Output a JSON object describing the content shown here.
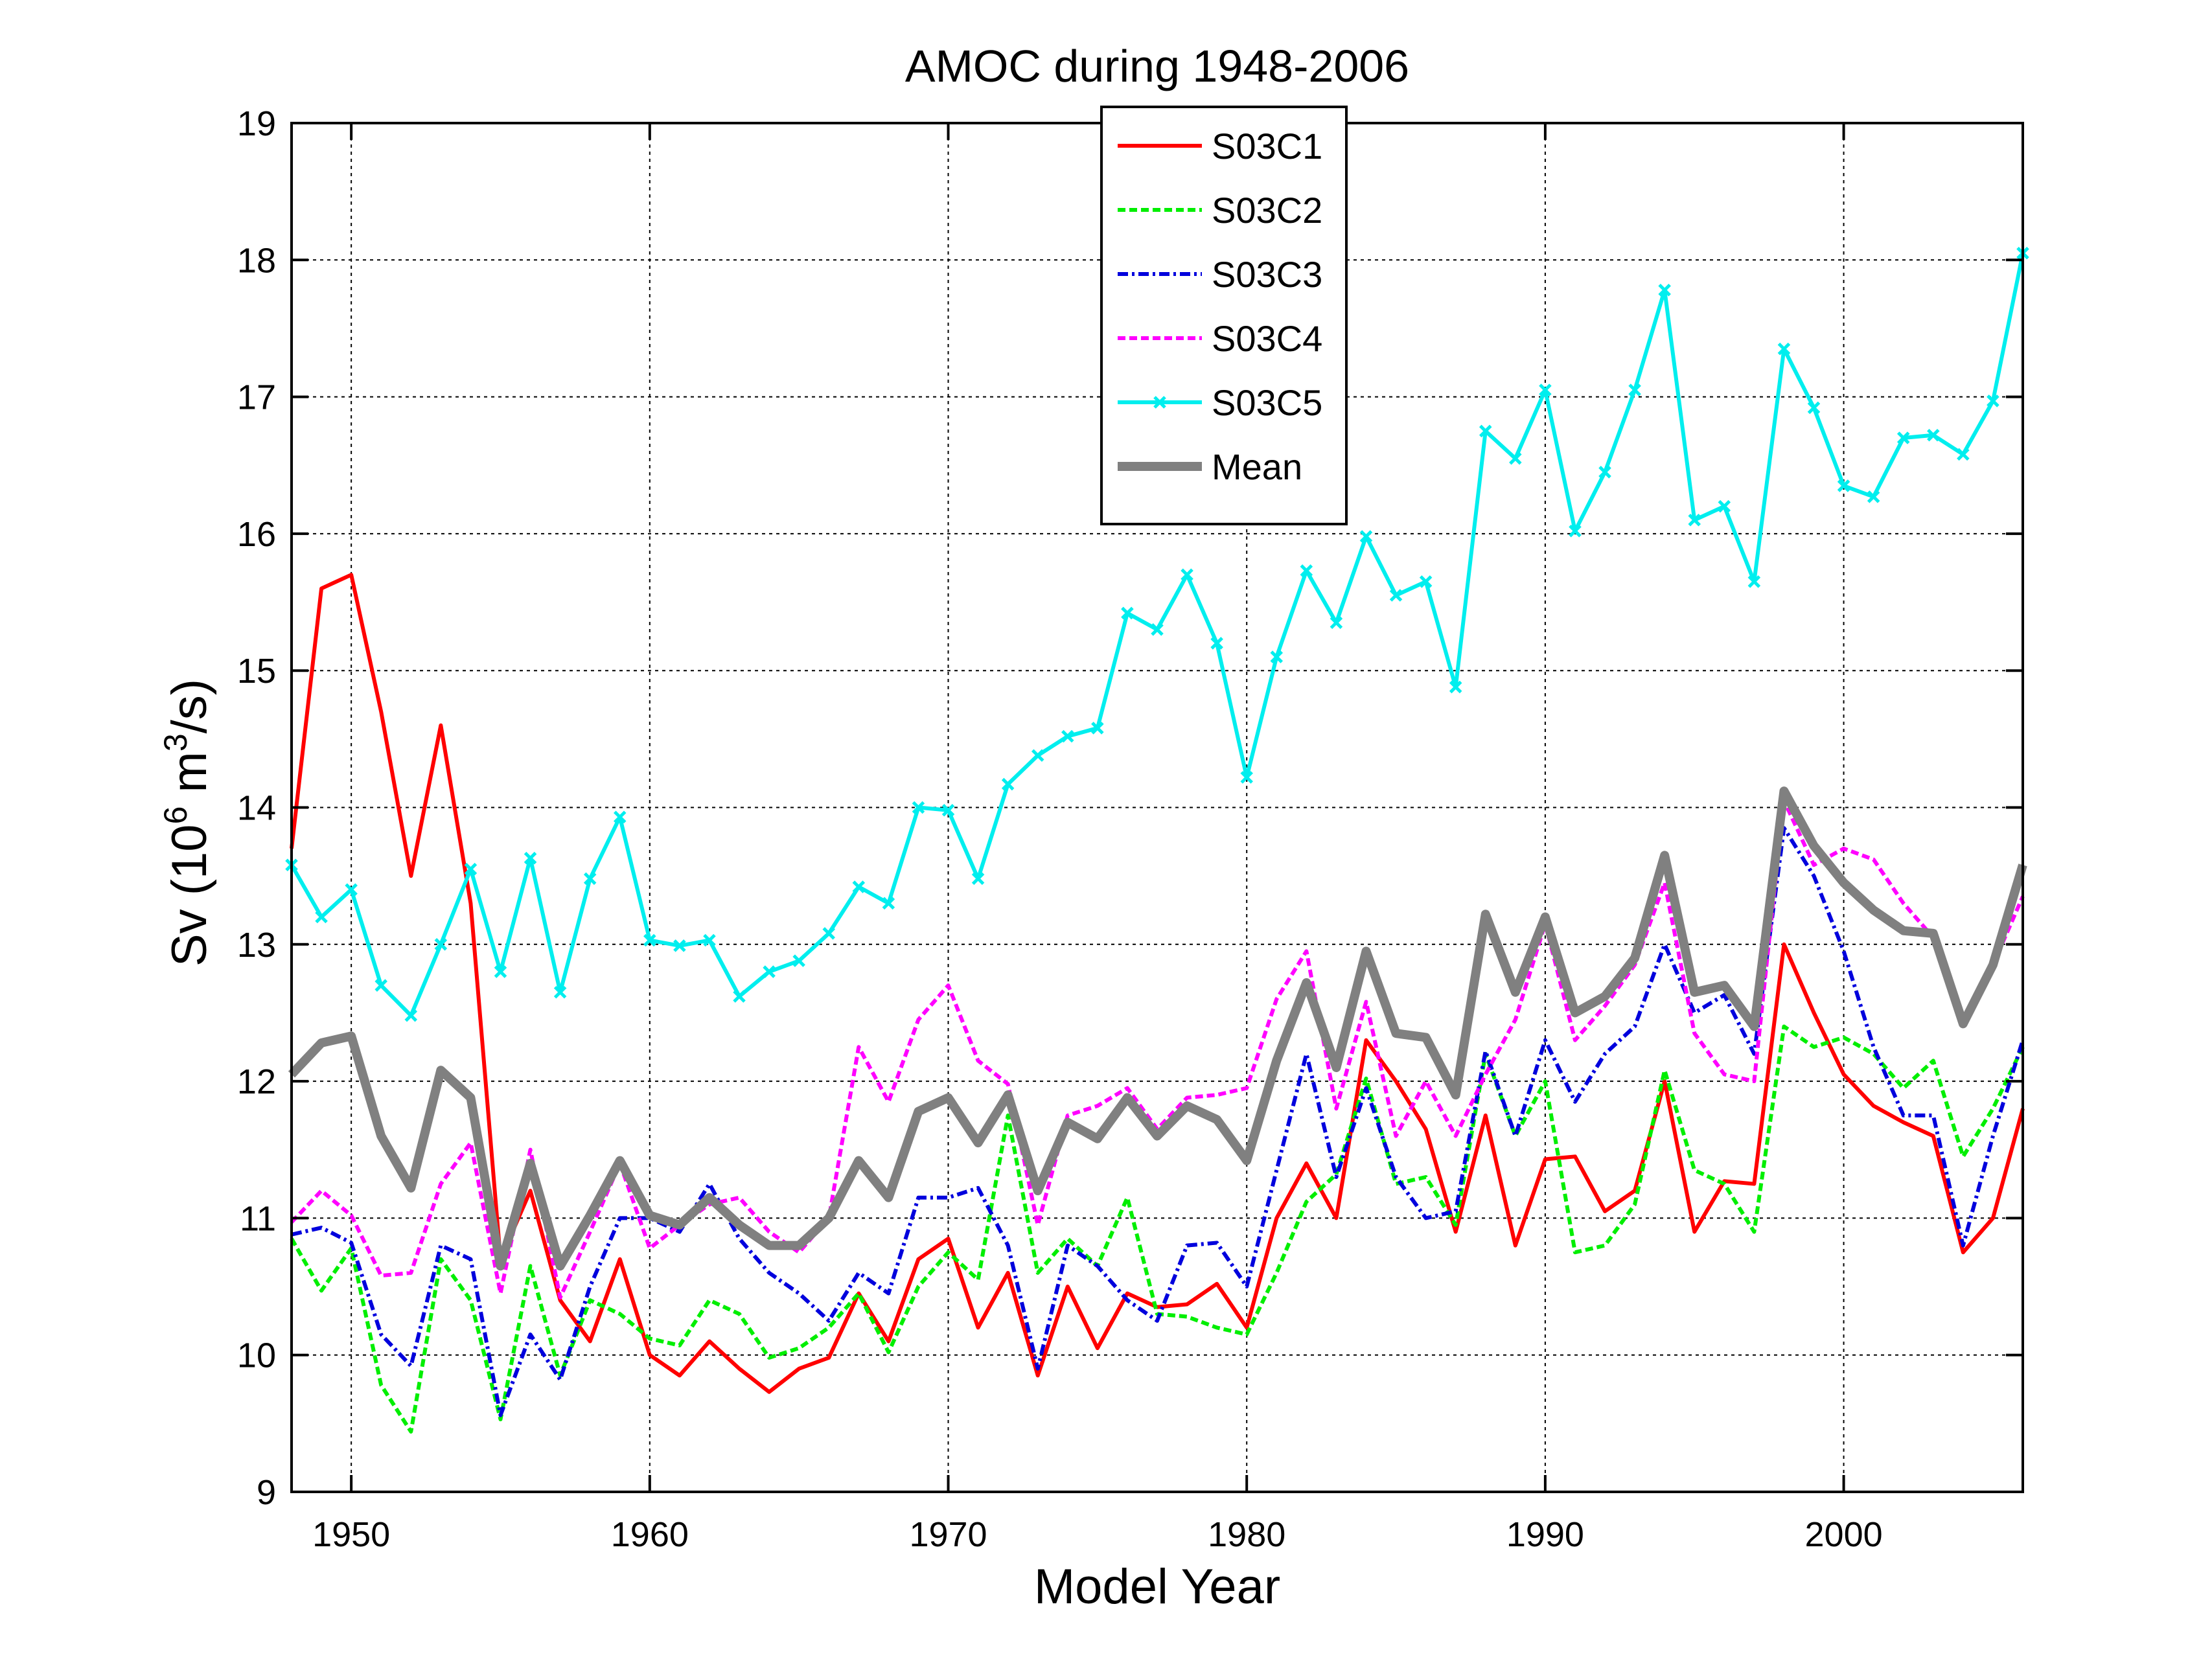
{
  "chart_data": {
    "type": "line",
    "title": "AMOC during 1948-2006",
    "xlabel": "Model Year",
    "ylabel_prefix": "Sv (10",
    "ylabel_sup1": "6",
    "ylabel_mid": " m",
    "ylabel_sup2": "3",
    "ylabel_suffix": "/s)",
    "xlim": [
      1948,
      2006
    ],
    "ylim": [
      9,
      19
    ],
    "xticks": [
      1950,
      1960,
      1970,
      1980,
      1990,
      2000
    ],
    "yticks": [
      9,
      10,
      11,
      12,
      13,
      14,
      15,
      16,
      17,
      18,
      19
    ],
    "grid": true,
    "legend_position": "top-center",
    "x": [
      1948,
      1949,
      1950,
      1951,
      1952,
      1953,
      1954,
      1955,
      1956,
      1957,
      1958,
      1959,
      1960,
      1961,
      1962,
      1963,
      1964,
      1965,
      1966,
      1967,
      1968,
      1969,
      1970,
      1971,
      1972,
      1973,
      1974,
      1975,
      1976,
      1977,
      1978,
      1979,
      1980,
      1981,
      1982,
      1983,
      1984,
      1985,
      1986,
      1987,
      1988,
      1989,
      1990,
      1991,
      1992,
      1993,
      1994,
      1995,
      1996,
      1997,
      1998,
      1999,
      2000,
      2001,
      2002,
      2003,
      2004,
      2005,
      2006
    ],
    "series": [
      {
        "name": "S03C1",
        "color": "#ff0000",
        "dash": "solid",
        "marker": "none",
        "width": "thin",
        "values": [
          13.7,
          15.6,
          15.7,
          14.7,
          13.5,
          14.6,
          13.3,
          10.7,
          11.2,
          10.4,
          10.1,
          10.7,
          10.0,
          9.85,
          10.1,
          9.9,
          9.73,
          9.9,
          9.98,
          10.45,
          10.1,
          10.7,
          10.85,
          10.2,
          10.6,
          9.85,
          10.5,
          10.05,
          10.45,
          10.35,
          10.37,
          10.52,
          10.2,
          11.0,
          11.4,
          11.0,
          12.3,
          12.0,
          11.65,
          10.9,
          11.75,
          10.8,
          11.43,
          11.45,
          11.05,
          11.2,
          12.0,
          10.9,
          11.27,
          11.25,
          13.0,
          12.5,
          12.05,
          11.82,
          11.7,
          11.6,
          10.75,
          11.0,
          11.8
        ]
      },
      {
        "name": "S03C2",
        "color": "#00ee00",
        "dash": "dashed",
        "marker": "none",
        "width": "thin",
        "values": [
          10.85,
          10.47,
          10.78,
          9.78,
          9.44,
          10.7,
          10.4,
          9.53,
          10.65,
          9.85,
          10.4,
          10.3,
          10.12,
          10.07,
          10.4,
          10.3,
          9.98,
          10.05,
          10.2,
          10.45,
          10.02,
          10.5,
          10.75,
          10.55,
          11.75,
          10.6,
          10.85,
          10.65,
          11.15,
          10.3,
          10.28,
          10.2,
          10.15,
          10.6,
          11.12,
          11.32,
          12.02,
          11.25,
          11.3,
          10.95,
          12.2,
          11.6,
          12.0,
          10.75,
          10.8,
          11.1,
          12.08,
          11.35,
          11.25,
          10.9,
          12.4,
          12.25,
          12.32,
          12.2,
          11.95,
          12.15,
          11.45,
          11.8,
          12.25
        ]
      },
      {
        "name": "S03C3",
        "color": "#0000dd",
        "dash": "dashdot",
        "marker": "none",
        "width": "thin",
        "values": [
          10.88,
          10.93,
          10.82,
          10.15,
          9.92,
          10.8,
          10.7,
          9.56,
          10.15,
          9.82,
          10.5,
          11.0,
          11.0,
          10.9,
          11.25,
          10.85,
          10.6,
          10.45,
          10.25,
          10.6,
          10.45,
          11.15,
          11.15,
          11.22,
          10.8,
          9.9,
          10.8,
          10.65,
          10.4,
          10.25,
          10.8,
          10.82,
          10.5,
          11.35,
          12.2,
          11.3,
          11.95,
          11.3,
          11.0,
          11.05,
          12.22,
          11.6,
          12.3,
          11.85,
          12.2,
          12.4,
          13.0,
          12.5,
          12.63,
          12.2,
          13.85,
          13.5,
          12.95,
          12.25,
          11.75,
          11.75,
          10.8,
          11.6,
          12.3
        ]
      },
      {
        "name": "S03C4",
        "color": "#ff00ff",
        "dash": "dashed",
        "marker": "none",
        "width": "thin",
        "values": [
          10.97,
          11.2,
          11.02,
          10.58,
          10.6,
          11.25,
          11.55,
          10.45,
          11.5,
          10.42,
          10.9,
          11.4,
          10.78,
          10.95,
          11.1,
          11.15,
          10.9,
          10.75,
          11.0,
          12.25,
          11.85,
          12.45,
          12.7,
          12.15,
          11.98,
          10.95,
          11.75,
          11.82,
          11.95,
          11.65,
          11.88,
          11.9,
          11.95,
          12.6,
          12.95,
          11.8,
          12.58,
          11.6,
          12.0,
          11.6,
          12.05,
          12.45,
          13.15,
          12.3,
          12.55,
          12.85,
          13.45,
          12.35,
          12.05,
          12.0,
          14.05,
          13.58,
          13.7,
          13.62,
          13.3,
          13.05,
          12.42,
          12.85,
          13.35
        ]
      },
      {
        "name": "S03C5",
        "color": "#00eeee",
        "dash": "solid",
        "marker": "x",
        "width": "thin",
        "values": [
          13.58,
          13.2,
          13.4,
          12.7,
          12.48,
          13.0,
          13.55,
          12.8,
          13.63,
          12.65,
          13.48,
          13.93,
          13.03,
          12.99,
          13.03,
          12.62,
          12.8,
          12.88,
          13.08,
          13.42,
          13.3,
          14.0,
          13.98,
          13.48,
          14.17,
          14.38,
          14.52,
          14.58,
          15.42,
          15.3,
          15.7,
          15.2,
          14.22,
          15.1,
          15.73,
          15.35,
          15.98,
          15.55,
          15.65,
          14.88,
          16.75,
          16.55,
          17.05,
          16.02,
          16.45,
          17.05,
          17.78,
          16.1,
          16.2,
          15.65,
          17.35,
          16.92,
          16.35,
          16.27,
          16.7,
          16.72,
          16.58,
          16.97,
          18.05
        ]
      },
      {
        "name": "Mean",
        "color": "#808080",
        "dash": "solid",
        "marker": "none",
        "width": "thick",
        "values": [
          12.05,
          12.28,
          12.33,
          11.6,
          11.22,
          12.08,
          11.88,
          10.65,
          11.4,
          10.65,
          11.02,
          11.42,
          11.02,
          10.95,
          11.15,
          10.95,
          10.8,
          10.8,
          11.0,
          11.42,
          11.15,
          11.78,
          11.88,
          11.55,
          11.9,
          11.2,
          11.7,
          11.58,
          11.88,
          11.6,
          11.82,
          11.72,
          11.42,
          12.15,
          12.72,
          12.1,
          12.95,
          12.35,
          12.32,
          11.9,
          13.22,
          12.65,
          13.2,
          12.5,
          12.62,
          12.9,
          13.65,
          12.65,
          12.7,
          12.4,
          14.12,
          13.72,
          13.45,
          13.25,
          13.1,
          13.08,
          12.42,
          12.85,
          13.58
        ]
      }
    ]
  }
}
